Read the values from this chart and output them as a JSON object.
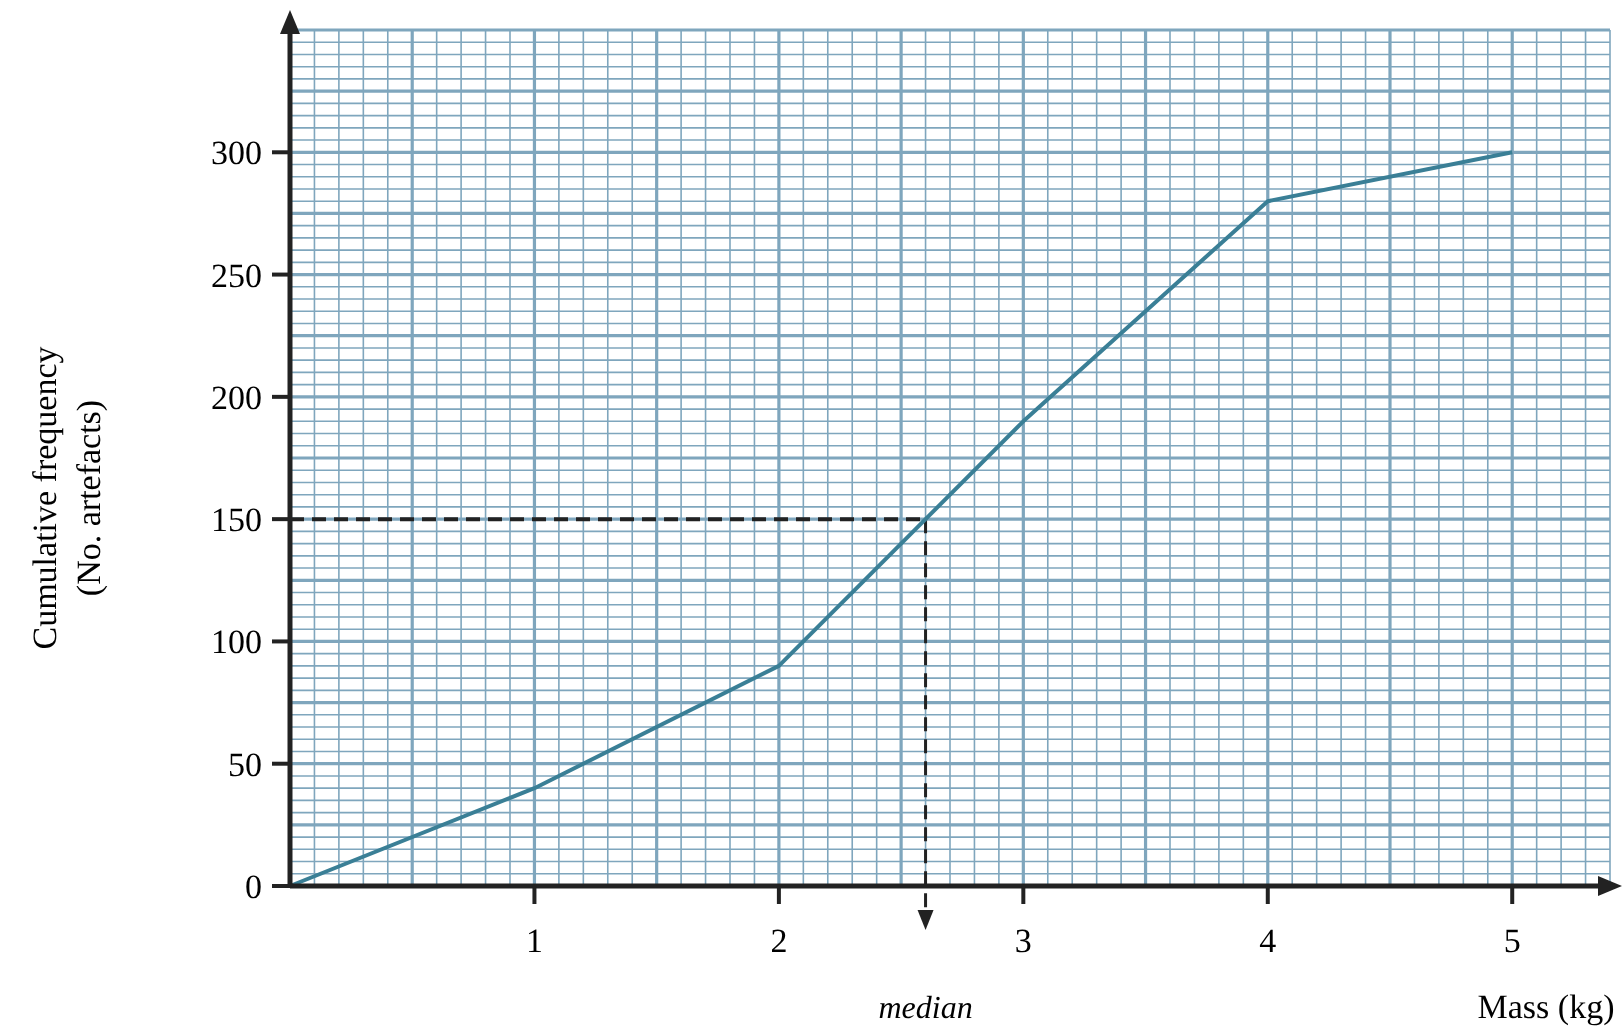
{
  "chart_data": {
    "type": "line",
    "xlabel": "Mass (kg)",
    "ylabel": "Cumulative frequency\n(No. artefacts)",
    "x": [
      0,
      1,
      2,
      3,
      4,
      5
    ],
    "series": [
      {
        "color": "#3a7f96",
        "values": [
          0,
          40,
          90,
          190,
          280,
          300
        ]
      }
    ],
    "xlim": [
      0,
      5.4
    ],
    "ylim": [
      0,
      350
    ],
    "xticks": [
      {
        "value": 0,
        "label": null
      },
      {
        "value": 0.1,
        "label": null
      },
      {
        "value": 0.2,
        "label": null
      },
      {
        "value": 0.3,
        "label": null
      },
      {
        "value": 0.4,
        "label": null
      },
      {
        "value": 0.5,
        "label": null
      },
      {
        "value": 0.6,
        "label": null
      },
      {
        "value": 0.7,
        "label": null
      },
      {
        "value": 0.8,
        "label": null
      },
      {
        "value": 0.9,
        "label": null
      },
      1,
      {
        "value": 1.1,
        "label": null
      },
      {
        "value": 1.2,
        "label": null
      },
      {
        "value": 1.3,
        "label": null
      },
      {
        "value": 1.4,
        "label": null
      },
      {
        "value": 1.5,
        "label": null
      },
      {
        "value": 1.6,
        "label": null
      },
      {
        "value": 1.7,
        "label": null
      },
      {
        "value": 1.8,
        "label": null
      },
      {
        "value": 1.9,
        "label": null
      },
      2,
      {
        "value": 2.1,
        "label": null
      },
      {
        "value": 2.2,
        "label": null
      },
      {
        "value": 2.3,
        "label": null
      },
      {
        "value": 2.4,
        "label": null
      },
      {
        "value": 2.5,
        "label": null
      },
      {
        "value": 2.6,
        "label": null
      },
      {
        "value": 2.7,
        "label": null
      },
      {
        "value": 2.8,
        "label": null
      },
      {
        "value": 2.9,
        "label": null
      },
      3,
      {
        "value": 3.1,
        "label": null
      },
      {
        "value": 3.2,
        "label": null
      },
      {
        "value": 3.3,
        "label": null
      },
      {
        "value": 3.4,
        "label": null
      },
      {
        "value": 3.5,
        "label": null
      },
      {
        "value": 3.6,
        "label": null
      },
      {
        "value": 3.7,
        "label": null
      },
      {
        "value": 3.8,
        "label": null
      },
      {
        "value": 3.9,
        "label": null
      },
      4,
      {
        "value": 4.1,
        "label": null
      },
      {
        "value": 4.2,
        "label": null
      },
      {
        "value": 4.3,
        "label": null
      },
      {
        "value": 4.4,
        "label": null
      },
      {
        "value": 4.5,
        "label": null
      },
      {
        "value": 4.6,
        "label": null
      },
      {
        "value": 4.7,
        "label": null
      },
      {
        "value": 4.8,
        "label": null
      },
      {
        "value": 4.9,
        "label": null
      },
      5,
      {
        "value": 5.1,
        "label": null
      },
      {
        "value": 5.2,
        "label": null
      },
      {
        "value": 5.3,
        "label": null
      },
      {
        "value": 5.4,
        "label": null
      }
    ],
    "yticks": [
      0,
      {
        "value": 5,
        "label": null
      },
      {
        "value": 10,
        "label": null
      },
      {
        "value": 15,
        "label": null
      },
      {
        "value": 20,
        "label": null
      },
      {
        "value": 25,
        "label": null
      },
      {
        "value": 30,
        "label": null
      },
      {
        "value": 35,
        "label": null
      },
      {
        "value": 40,
        "label": null
      },
      {
        "value": 45,
        "label": null
      },
      50,
      {
        "value": 55,
        "label": null
      },
      {
        "value": 60,
        "label": null
      },
      {
        "value": 65,
        "label": null
      },
      {
        "value": 70,
        "label": null
      },
      {
        "value": 75,
        "label": null
      },
      {
        "value": 80,
        "label": null
      },
      {
        "value": 85,
        "label": null
      },
      {
        "value": 90,
        "label": null
      },
      {
        "value": 95,
        "label": null
      },
      100,
      {
        "value": 105,
        "label": null
      },
      {
        "value": 110,
        "label": null
      },
      {
        "value": 115,
        "label": null
      },
      {
        "value": 120,
        "label": null
      },
      {
        "value": 125,
        "label": null
      },
      {
        "value": 130,
        "label": null
      },
      {
        "value": 135,
        "label": null
      },
      {
        "value": 140,
        "label": null
      },
      {
        "value": 145,
        "label": null
      },
      150,
      {
        "value": 155,
        "label": null
      },
      {
        "value": 160,
        "label": null
      },
      {
        "value": 165,
        "label": null
      },
      {
        "value": 170,
        "label": null
      },
      {
        "value": 175,
        "label": null
      },
      {
        "value": 180,
        "label": null
      },
      {
        "value": 185,
        "label": null
      },
      {
        "value": 190,
        "label": null
      },
      {
        "value": 195,
        "label": null
      },
      200,
      {
        "value": 205,
        "label": null
      },
      {
        "value": 210,
        "label": null
      },
      {
        "value": 215,
        "label": null
      },
      {
        "value": 220,
        "label": null
      },
      {
        "value": 225,
        "label": null
      },
      {
        "value": 230,
        "label": null
      },
      {
        "value": 235,
        "label": null
      },
      {
        "value": 240,
        "label": null
      },
      {
        "value": 245,
        "label": null
      },
      250,
      {
        "value": 255,
        "label": null
      },
      {
        "value": 260,
        "label": null
      },
      {
        "value": 265,
        "label": null
      },
      {
        "value": 270,
        "label": null
      },
      {
        "value": 275,
        "label": null
      },
      {
        "value": 280,
        "label": null
      },
      {
        "value": 285,
        "label": null
      },
      {
        "value": 290,
        "label": null
      },
      {
        "value": 295,
        "label": null
      },
      300,
      {
        "value": 305,
        "label": null
      },
      {
        "value": 310,
        "label": null
      },
      {
        "value": 315,
        "label": null
      },
      {
        "value": 320,
        "label": null
      },
      {
        "value": 325,
        "label": null
      },
      {
        "value": 330,
        "label": null
      },
      {
        "value": 335,
        "label": null
      },
      {
        "value": 340,
        "label": null
      },
      {
        "value": 345,
        "label": null
      },
      {
        "value": 350,
        "label": null
      }
    ],
    "grid": true,
    "marker": "none",
    "line_style": "solid",
    "ref_lines": [
      {
        "axis": "y",
        "value": 150,
        "color": "#222222",
        "line_style": "dashed"
      },
      {
        "axis": "x",
        "value": 2.6,
        "label": "median",
        "color": "#222222",
        "line_style": "dashed"
      }
    ]
  }
}
